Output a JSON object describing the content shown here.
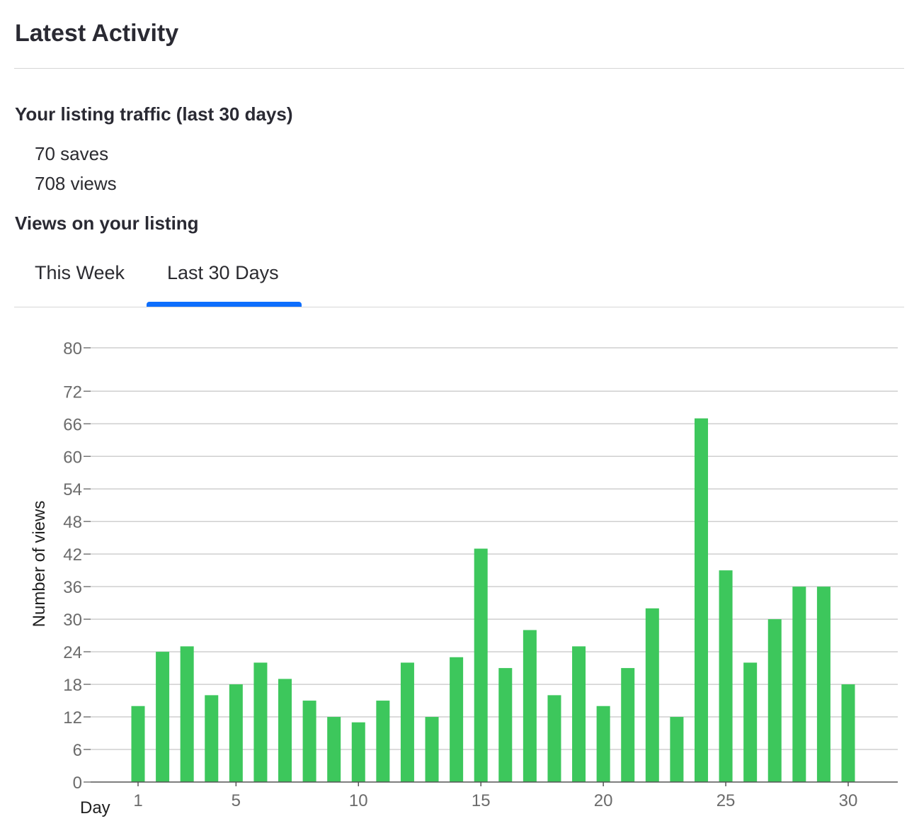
{
  "header": {
    "title": "Latest Activity"
  },
  "traffic": {
    "heading": "Your listing traffic (last 30 days)",
    "saves": "70 saves",
    "views": "708 views"
  },
  "views_section": {
    "heading": "Views on your listing",
    "tabs": [
      {
        "label": "This Week",
        "active": false
      },
      {
        "label": "Last 30 Days",
        "active": true
      }
    ]
  },
  "colors": {
    "bar": "#3dc75c",
    "tab_active": "#0d6efd",
    "grid": "#cfcfcf"
  },
  "chart_data": {
    "type": "bar",
    "xlabel": "Day",
    "ylabel": "Number of views",
    "x": [
      1,
      2,
      3,
      4,
      5,
      6,
      7,
      8,
      9,
      10,
      11,
      12,
      13,
      14,
      15,
      16,
      17,
      18,
      19,
      20,
      21,
      22,
      23,
      24,
      25,
      26,
      27,
      28,
      29,
      30
    ],
    "values": [
      14,
      24,
      25,
      16,
      18,
      22,
      19,
      15,
      12,
      11,
      15,
      22,
      12,
      23,
      43,
      21,
      28,
      16,
      25,
      14,
      21,
      32,
      12,
      67,
      39,
      22,
      30,
      36,
      36,
      18
    ],
    "ylim": [
      0,
      80
    ],
    "yticks": [
      0,
      6,
      12,
      18,
      24,
      30,
      36,
      42,
      48,
      54,
      60,
      66,
      72,
      80
    ],
    "xticks": [
      1,
      5,
      10,
      15,
      20,
      25,
      30
    ],
    "grid": true
  }
}
